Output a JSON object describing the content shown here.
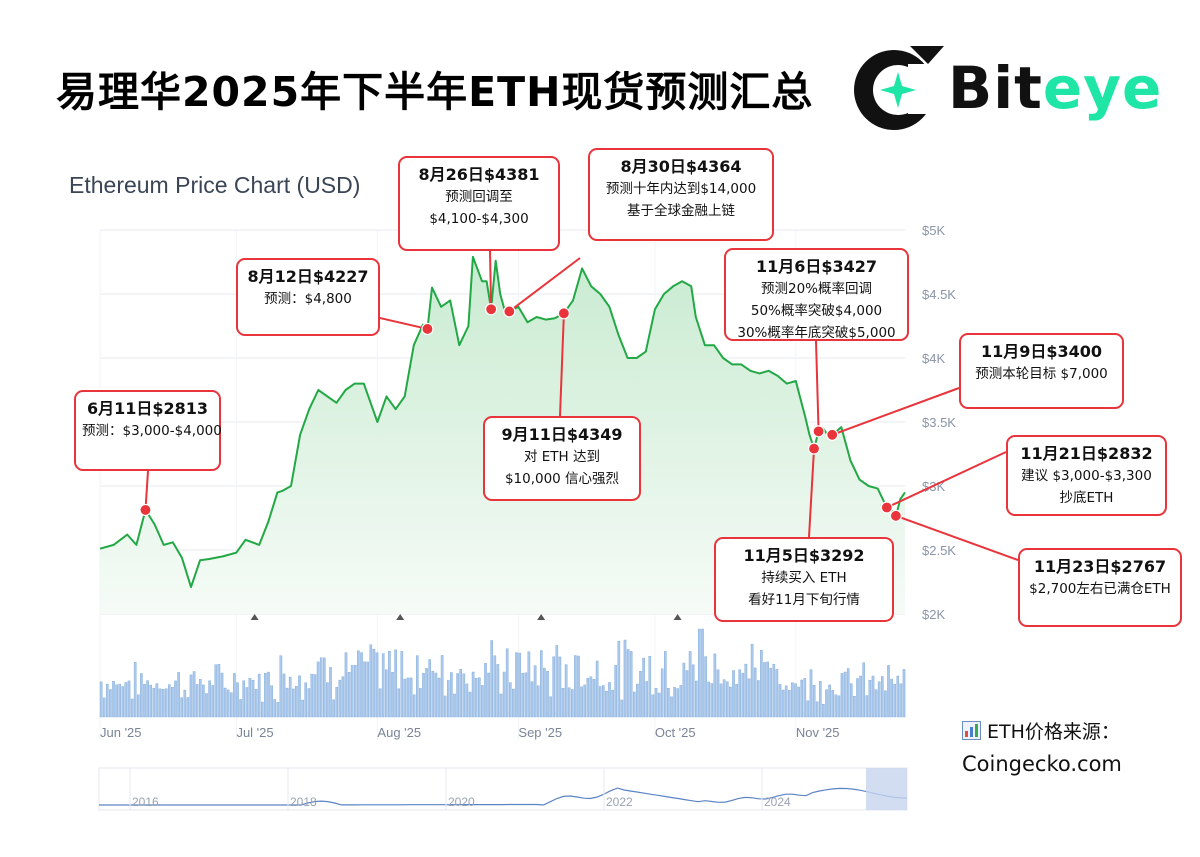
{
  "header": {
    "title": "易理华2025年下半年ETH现货预测汇总",
    "logo_text_dark": "Bit",
    "logo_text_accent": "eye"
  },
  "source": {
    "label": "ETH价格来源：",
    "url": "Coingecko.com",
    "icon": "bar-chart-icon"
  },
  "colors": {
    "line": "#22a845",
    "area": "#dff3e3",
    "volume": "#aac8ec",
    "callout_border": "#e8343a",
    "marker": "#e8343a",
    "accent": "#1fe5a6"
  },
  "chart_data": {
    "type": "line",
    "title": "Ethereum Price Chart (USD)",
    "y_ticks": [
      "$5K",
      "$4.5K",
      "$4K",
      "$3.5K",
      "$3K",
      "$2.5K",
      "$2K"
    ],
    "ylim": [
      2000,
      5000
    ],
    "x_ticks": [
      "Jun '25",
      "Jul '25",
      "Aug '25",
      "Sep '25",
      "Oct '25",
      "Nov '25"
    ],
    "x_tick_dates": [
      "2025-06-01",
      "2025-07-01",
      "2025-08-01",
      "2025-09-01",
      "2025-10-01",
      "2025-11-01"
    ],
    "xlim": [
      "2025-06-01",
      "2025-11-25"
    ],
    "grid": true,
    "series": [
      {
        "x": [
          "2025-06-01",
          "2025-06-04",
          "2025-06-07",
          "2025-06-09",
          "2025-06-11",
          "2025-06-13",
          "2025-06-15",
          "2025-06-17",
          "2025-06-19",
          "2025-06-21",
          "2025-06-23",
          "2025-06-25",
          "2025-06-28",
          "2025-07-01",
          "2025-07-03",
          "2025-07-06",
          "2025-07-08",
          "2025-07-10",
          "2025-07-11",
          "2025-07-13",
          "2025-07-15",
          "2025-07-17",
          "2025-07-19",
          "2025-07-21",
          "2025-07-23",
          "2025-07-25",
          "2025-07-27",
          "2025-07-29",
          "2025-08-01",
          "2025-08-03",
          "2025-08-05",
          "2025-08-07",
          "2025-08-09",
          "2025-08-11",
          "2025-08-12",
          "2025-08-13",
          "2025-08-15",
          "2025-08-17",
          "2025-08-19",
          "2025-08-21",
          "2025-08-22",
          "2025-08-24",
          "2025-08-25",
          "2025-08-26",
          "2025-08-27",
          "2025-08-28",
          "2025-08-29",
          "2025-08-30",
          "2025-09-01",
          "2025-09-03",
          "2025-09-05",
          "2025-09-07",
          "2025-09-09",
          "2025-09-11",
          "2025-09-13",
          "2025-09-15",
          "2025-09-17",
          "2025-09-19",
          "2025-09-21",
          "2025-09-23",
          "2025-09-25",
          "2025-09-27",
          "2025-09-29",
          "2025-10-01",
          "2025-10-03",
          "2025-10-05",
          "2025-10-07",
          "2025-10-09",
          "2025-10-10",
          "2025-10-12",
          "2025-10-14",
          "2025-10-16",
          "2025-10-18",
          "2025-10-20",
          "2025-10-22",
          "2025-10-24",
          "2025-10-26",
          "2025-10-28",
          "2025-10-30",
          "2025-11-01",
          "2025-11-03",
          "2025-11-04",
          "2025-11-05",
          "2025-11-06",
          "2025-11-07",
          "2025-11-08",
          "2025-11-09",
          "2025-11-11",
          "2025-11-13",
          "2025-11-15",
          "2025-11-17",
          "2025-11-19",
          "2025-11-21",
          "2025-11-22",
          "2025-11-23",
          "2025-11-24",
          "2025-11-25"
        ],
        "values": [
          2510,
          2540,
          2620,
          2540,
          2813,
          2700,
          2540,
          2560,
          2440,
          2210,
          2420,
          2430,
          2450,
          2480,
          2580,
          2540,
          2720,
          2950,
          2960,
          3000,
          3400,
          3600,
          3750,
          3700,
          3650,
          3750,
          3800,
          3800,
          3500,
          3700,
          3600,
          3700,
          4100,
          4260,
          4227,
          4550,
          4400,
          4450,
          4100,
          4250,
          4790,
          4600,
          4600,
          4381,
          4760,
          4500,
          4370,
          4364,
          4400,
          4280,
          4320,
          4300,
          4310,
          4349,
          4450,
          4700,
          4560,
          4500,
          4400,
          4180,
          4000,
          4000,
          4050,
          4380,
          4500,
          4560,
          4600,
          4560,
          4320,
          4100,
          4100,
          4000,
          3950,
          3950,
          3900,
          3880,
          3900,
          3860,
          3800,
          3820,
          3550,
          3400,
          3292,
          3427,
          3450,
          3400,
          3400,
          3460,
          3200,
          3050,
          3000,
          2980,
          2832,
          2810,
          2767,
          2900,
          2950
        ]
      }
    ],
    "annotations": [
      {
        "date": "2025-06-11",
        "value": 2813,
        "heading": "6月11日$2813",
        "lines": [
          "预测：$3,000-$4,000"
        ]
      },
      {
        "date": "2025-08-12",
        "value": 4227,
        "heading": "8月12日$4227",
        "lines": [
          "预测：$4,800"
        ]
      },
      {
        "date": "2025-08-26",
        "value": 4381,
        "heading": "8月26日$4381",
        "lines": [
          "预测回调至",
          "$4,100-$4,300"
        ]
      },
      {
        "date": "2025-08-30",
        "value": 4364,
        "heading": "8月30日$4364",
        "lines": [
          "预测十年内达到$14,000",
          "基于全球金融上链"
        ]
      },
      {
        "date": "2025-09-11",
        "value": 4349,
        "heading": "9月11日$4349",
        "lines": [
          "对 ETH 达到",
          "$10,000 信心强烈"
        ]
      },
      {
        "date": "2025-11-05",
        "value": 3292,
        "heading": "11月5日$3292",
        "lines": [
          "持续买入 ETH",
          "看好11月下旬行情"
        ]
      },
      {
        "date": "2025-11-06",
        "value": 3427,
        "heading": "11月6日$3427",
        "lines": [
          "预测20%概率回调",
          "50%概率突破$4,000",
          "30%概率年底突破$5,000"
        ]
      },
      {
        "date": "2025-11-09",
        "value": 3400,
        "heading": "11月9日$3400",
        "lines": [
          "预测本轮目标 $7,000"
        ]
      },
      {
        "date": "2025-11-21",
        "value": 2832,
        "heading": "11月21日$2832",
        "lines": [
          "建议 $3,000-$3,300",
          "抄底ETH"
        ]
      },
      {
        "date": "2025-11-23",
        "value": 2767,
        "heading": "11月23日$2767",
        "lines": [
          "$2,700左右已满仓ETH"
        ]
      }
    ],
    "navigator": {
      "year_labels": [
        "2016",
        "2018",
        "2020",
        "2022",
        "2024"
      ]
    }
  }
}
